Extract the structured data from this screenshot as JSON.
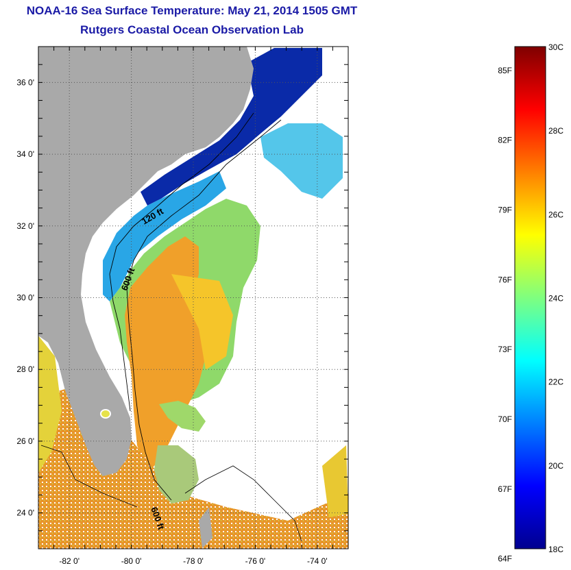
{
  "header": {
    "title": "NOAA-16 Sea Surface Temperature:  May 21, 2014 1505 GMT",
    "subtitle": "Rutgers Coastal Ocean Observation Lab"
  },
  "map": {
    "lon_range": [
      -83,
      -73
    ],
    "lat_range": [
      23,
      37
    ],
    "lon_ticks": [
      "-82 0'",
      "-80 0'",
      "-78 0'",
      "-76 0'",
      "-74 0'"
    ],
    "lat_ticks": [
      "36 0'",
      "34 0'",
      "32 0'",
      "30 0'",
      "28 0'",
      "26 0'",
      "24 0'"
    ],
    "contour_labels": [
      "120 ft",
      "600 ft",
      "600 ft"
    ],
    "colors": {
      "land": "#a9a9a9",
      "cloud": "#ffffff",
      "warm": "#f2a51f",
      "mid": "#a8e04a",
      "cool": "#1aa3e8",
      "cold": "#08239c"
    }
  },
  "colorbar": {
    "f_labels": [
      "85F",
      "82F",
      "79F",
      "76F",
      "73F",
      "70F",
      "67F",
      "64F"
    ],
    "c_labels": [
      "30C",
      "28C",
      "26C",
      "24C",
      "22C",
      "20C",
      "18C"
    ],
    "range_c": [
      18,
      30
    ]
  }
}
